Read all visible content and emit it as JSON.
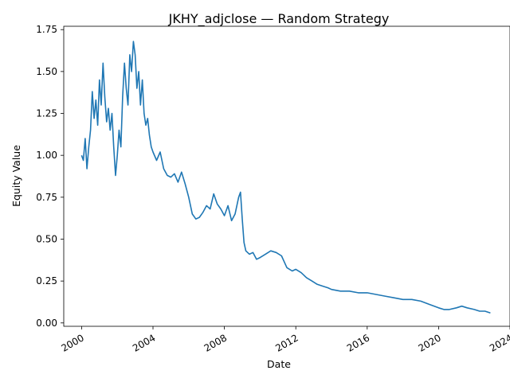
{
  "chart_data": {
    "type": "line",
    "title": "JKHY_adjclose — Random Strategy",
    "xlabel": "Date",
    "ylabel": "Equity Value",
    "xlim": [
      1999.0,
      2024.0
    ],
    "ylim": [
      -0.02,
      1.77
    ],
    "x_ticks": [
      "2000",
      "2004",
      "2008",
      "2012",
      "2016",
      "2020",
      "2024"
    ],
    "y_ticks": [
      "0.00",
      "0.25",
      "0.50",
      "0.75",
      "1.00",
      "1.25",
      "1.50",
      "1.75"
    ],
    "grid": false,
    "line_color": "#1f77b4",
    "series": [
      {
        "x": [
          2000.0,
          2000.1,
          2000.2,
          2000.3,
          2000.4,
          2000.5,
          2000.6,
          2000.7,
          2000.8,
          2000.9,
          2001.0,
          2001.1,
          2001.2,
          2001.3,
          2001.4,
          2001.5,
          2001.6,
          2001.7,
          2001.8,
          2001.9,
          2002.0,
          2002.1,
          2002.2,
          2002.3,
          2002.4,
          2002.5,
          2002.6,
          2002.7,
          2002.8,
          2002.9,
          2003.0,
          2003.1,
          2003.2,
          2003.3,
          2003.4,
          2003.5,
          2003.6,
          2003.7,
          2003.8,
          2003.9,
          2004.0,
          2004.2,
          2004.4,
          2004.6,
          2004.8,
          2005.0,
          2005.2,
          2005.4,
          2005.6,
          2005.8,
          2006.0,
          2006.2,
          2006.4,
          2006.6,
          2006.8,
          2007.0,
          2007.2,
          2007.4,
          2007.6,
          2007.8,
          2008.0,
          2008.2,
          2008.4,
          2008.6,
          2008.8,
          2008.9,
          2009.0,
          2009.1,
          2009.2,
          2009.4,
          2009.6,
          2009.8,
          2010.0,
          2010.3,
          2010.6,
          2010.9,
          2011.2,
          2011.5,
          2011.8,
          2012.0,
          2012.3,
          2012.6,
          2012.9,
          2013.2,
          2013.5,
          2013.8,
          2014.0,
          2014.5,
          2015.0,
          2015.5,
          2016.0,
          2016.5,
          2017.0,
          2017.5,
          2018.0,
          2018.5,
          2019.0,
          2019.5,
          2020.0,
          2020.3,
          2020.6,
          2021.0,
          2021.3,
          2021.6,
          2022.0,
          2022.3,
          2022.6,
          2022.9
        ],
        "values": [
          1.0,
          0.97,
          1.1,
          0.92,
          1.05,
          1.15,
          1.38,
          1.22,
          1.33,
          1.18,
          1.45,
          1.3,
          1.55,
          1.35,
          1.2,
          1.28,
          1.15,
          1.25,
          1.05,
          0.88,
          1.0,
          1.15,
          1.05,
          1.35,
          1.55,
          1.4,
          1.3,
          1.6,
          1.5,
          1.68,
          1.6,
          1.4,
          1.5,
          1.3,
          1.45,
          1.25,
          1.18,
          1.22,
          1.12,
          1.05,
          1.02,
          0.97,
          1.02,
          0.92,
          0.88,
          0.87,
          0.89,
          0.84,
          0.9,
          0.83,
          0.75,
          0.65,
          0.62,
          0.63,
          0.66,
          0.7,
          0.68,
          0.77,
          0.71,
          0.68,
          0.64,
          0.7,
          0.61,
          0.65,
          0.75,
          0.78,
          0.62,
          0.48,
          0.43,
          0.41,
          0.42,
          0.38,
          0.39,
          0.41,
          0.43,
          0.42,
          0.4,
          0.33,
          0.31,
          0.32,
          0.3,
          0.27,
          0.25,
          0.23,
          0.22,
          0.21,
          0.2,
          0.19,
          0.19,
          0.18,
          0.18,
          0.17,
          0.16,
          0.15,
          0.14,
          0.14,
          0.13,
          0.11,
          0.09,
          0.08,
          0.08,
          0.09,
          0.1,
          0.09,
          0.08,
          0.07,
          0.07,
          0.06
        ]
      }
    ]
  }
}
